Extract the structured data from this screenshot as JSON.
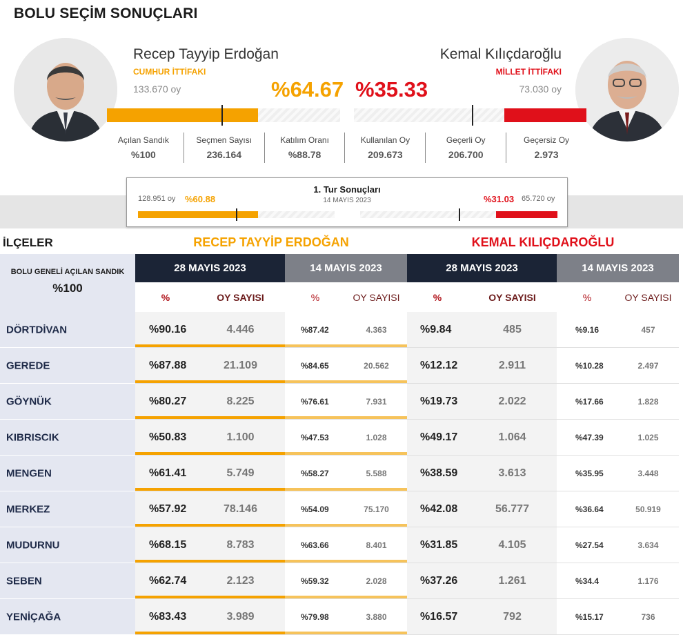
{
  "page": {
    "title": "BOLU SEÇİM SONUÇLARI"
  },
  "candidates": {
    "left": {
      "name": "Recep Tayyip Erdoğan",
      "alliance": "CUMHUR İTTİFAKI",
      "votes": "133.670 oy",
      "percent": "%64.67",
      "share": 64.67,
      "color": "#f5a200"
    },
    "right": {
      "name": "Kemal Kılıçdaroğlu",
      "alliance": "MİLLET İTTİFAKI",
      "votes": "73.030 oy",
      "percent": "%35.33",
      "share": 35.33,
      "color": "#e0101a"
    }
  },
  "stats": [
    {
      "label": "Açılan Sandık",
      "value": "%100"
    },
    {
      "label": "Seçmen Sayısı",
      "value": "236.164"
    },
    {
      "label": "Katılım Oranı",
      "value": "%88.78"
    },
    {
      "label": "Kullanılan Oy",
      "value": "209.673"
    },
    {
      "label": "Geçerli Oy",
      "value": "206.700"
    },
    {
      "label": "Geçersiz Oy",
      "value": "2.973"
    }
  ],
  "first_round": {
    "title": "1. Tur Sonuçları",
    "date": "14 MAYIS 2023",
    "left_votes": "128.951 oy",
    "left_percent": "%60.88",
    "right_percent": "%31.03",
    "right_votes": "65.720 oy"
  },
  "table": {
    "section_title": "İLÇELER",
    "left_candidate_header": "RECEP TAYYİP ERDOĞAN",
    "right_candidate_header": "KEMAL KILIÇDAROĞLU",
    "region_label": "BOLU GENELİ AÇILAN SANDIK",
    "region_value": "%100",
    "date_headers": [
      "28 MAYIS 2023",
      "14 MAYIS 2023",
      "28 MAYIS 2023",
      "14 MAYIS 2023"
    ],
    "sub_pct": "%",
    "sub_votes": "OY SAYISI",
    "rows": [
      {
        "district": "DÖRTDİVAN",
        "e28_pct": "%90.16",
        "e28_votes": "4.446",
        "e14_pct": "%87.42",
        "e14_votes": "4.363",
        "k28_pct": "%9.84",
        "k28_votes": "485",
        "k14_pct": "%9.16",
        "k14_votes": "457"
      },
      {
        "district": "GEREDE",
        "e28_pct": "%87.88",
        "e28_votes": "21.109",
        "e14_pct": "%84.65",
        "e14_votes": "20.562",
        "k28_pct": "%12.12",
        "k28_votes": "2.911",
        "k14_pct": "%10.28",
        "k14_votes": "2.497"
      },
      {
        "district": "GÖYNÜK",
        "e28_pct": "%80.27",
        "e28_votes": "8.225",
        "e14_pct": "%76.61",
        "e14_votes": "7.931",
        "k28_pct": "%19.73",
        "k28_votes": "2.022",
        "k14_pct": "%17.66",
        "k14_votes": "1.828"
      },
      {
        "district": "KIBRISCIK",
        "e28_pct": "%50.83",
        "e28_votes": "1.100",
        "e14_pct": "%47.53",
        "e14_votes": "1.028",
        "k28_pct": "%49.17",
        "k28_votes": "1.064",
        "k14_pct": "%47.39",
        "k14_votes": "1.025"
      },
      {
        "district": "MENGEN",
        "e28_pct": "%61.41",
        "e28_votes": "5.749",
        "e14_pct": "%58.27",
        "e14_votes": "5.588",
        "k28_pct": "%38.59",
        "k28_votes": "3.613",
        "k14_pct": "%35.95",
        "k14_votes": "3.448"
      },
      {
        "district": "MERKEZ",
        "e28_pct": "%57.92",
        "e28_votes": "78.146",
        "e14_pct": "%54.09",
        "e14_votes": "75.170",
        "k28_pct": "%42.08",
        "k28_votes": "56.777",
        "k14_pct": "%36.64",
        "k14_votes": "50.919"
      },
      {
        "district": "MUDURNU",
        "e28_pct": "%68.15",
        "e28_votes": "8.783",
        "e14_pct": "%63.66",
        "e14_votes": "8.401",
        "k28_pct": "%31.85",
        "k28_votes": "4.105",
        "k14_pct": "%27.54",
        "k14_votes": "3.634"
      },
      {
        "district": "SEBEN",
        "e28_pct": "%62.74",
        "e28_votes": "2.123",
        "e14_pct": "%59.32",
        "e14_votes": "2.028",
        "k28_pct": "%37.26",
        "k28_votes": "1.261",
        "k14_pct": "%34.4",
        "k14_votes": "1.176"
      },
      {
        "district": "YENİÇAĞA",
        "e28_pct": "%83.43",
        "e28_votes": "3.989",
        "e14_pct": "%79.98",
        "e14_votes": "3.880",
        "k28_pct": "%16.57",
        "k28_votes": "792",
        "k14_pct": "%15.17",
        "k14_votes": "736"
      }
    ]
  }
}
